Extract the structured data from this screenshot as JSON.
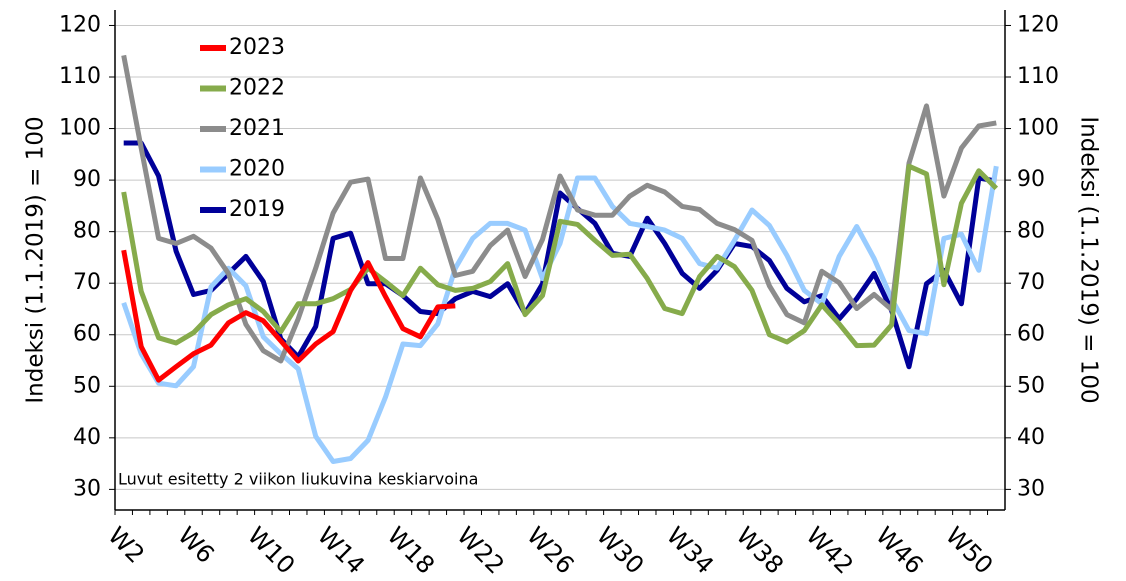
{
  "chart_data": {
    "type": "line",
    "annotation": "Luvut esitetty 2 viikon liukuvina keskiarvoina",
    "y_label": "Indeksi (1.1.2019) = 100",
    "y2_label": "Indeksi (1.1.2019) = 100",
    "categories": [
      "W2",
      null,
      null,
      null,
      "W6",
      null,
      null,
      null,
      "W10",
      null,
      null,
      null,
      "W14",
      null,
      null,
      null,
      "W18",
      null,
      null,
      null,
      "W22",
      null,
      null,
      null,
      "W26",
      null,
      null,
      null,
      "W30",
      null,
      null,
      null,
      "W34",
      null,
      null,
      null,
      "W38",
      null,
      null,
      null,
      "W42",
      null,
      null,
      null,
      "W46",
      null,
      null,
      null,
      "W50",
      null,
      null
    ],
    "ylim": [
      26,
      123
    ],
    "yticks": [
      30,
      40,
      50,
      60,
      70,
      80,
      90,
      100,
      110,
      120
    ],
    "y2lim": [
      26,
      123
    ],
    "y2ticks": [
      30,
      40,
      50,
      60,
      70,
      80,
      90,
      100,
      110,
      120
    ],
    "grid": true,
    "legend": "upper left",
    "series": [
      {
        "name": "2023",
        "color": "#ff0000",
        "values": [
          76.4,
          57.7,
          51.2,
          53.8,
          56.3,
          58,
          62.3,
          64.3,
          62.7,
          58.8,
          54.9,
          58.2,
          60.6,
          68.6,
          74,
          67.4,
          61.2,
          59.6,
          65.4,
          65.6,
          null,
          null,
          null,
          null,
          null,
          null,
          null,
          null,
          null,
          null,
          null,
          null,
          null,
          null,
          null,
          null,
          null,
          null,
          null,
          null,
          null,
          null,
          null,
          null,
          null,
          null,
          null,
          null,
          null,
          null,
          null
        ]
      },
      {
        "name": "2022",
        "color": "#86ab4b",
        "values": [
          87.7,
          68.4,
          59.4,
          58.4,
          60.4,
          63.9,
          65.8,
          67,
          64.5,
          60.6,
          66,
          66,
          67,
          68.8,
          72.9,
          70.3,
          67.6,
          72.9,
          69.7,
          68.6,
          69,
          70.3,
          73.8,
          63.9,
          67.6,
          82,
          81.4,
          78.3,
          75.4,
          75.6,
          70.9,
          65.1,
          64.1,
          71.3,
          75.2,
          73.2,
          68.6,
          60,
          58.6,
          60.8,
          65.8,
          62.1,
          57.9,
          58,
          61.9,
          92.7,
          91.2,
          69.7,
          85.5,
          91.8,
          88.4
        ]
      },
      {
        "name": "2021",
        "color": "#8c8c8c",
        "values": [
          114.2,
          96.2,
          78.7,
          77.7,
          79.1,
          76.8,
          71.9,
          62,
          56.9,
          54.9,
          63.1,
          72.9,
          83.6,
          89.6,
          90.2,
          74.8,
          74.8,
          90.4,
          82.4,
          71.5,
          72.3,
          77.3,
          80.3,
          71.3,
          78.5,
          90.8,
          84.2,
          83.2,
          83.2,
          86.9,
          89,
          87.7,
          84.9,
          84.3,
          81.6,
          80.4,
          78.3,
          69.5,
          63.9,
          62.3,
          72.3,
          70.1,
          65.1,
          67.8,
          64.9,
          93.3,
          104.4,
          86.9,
          96.2,
          100.5,
          101.1
        ]
      },
      {
        "name": "2020",
        "color": "#99ccff",
        "values": [
          66.2,
          56.3,
          50.6,
          50.1,
          53.8,
          69.3,
          72.9,
          69.5,
          59.6,
          56.3,
          53.4,
          40.3,
          35.4,
          36,
          39.5,
          47.9,
          58.2,
          57.9,
          62.1,
          72.9,
          78.7,
          81.6,
          81.6,
          80.3,
          70.9,
          77.7,
          90.4,
          90.4,
          84.9,
          81.6,
          81,
          80.3,
          78.7,
          73.8,
          72.9,
          78.3,
          84.2,
          81.2,
          75.4,
          68.6,
          66,
          75.2,
          81,
          74.8,
          67,
          60.8,
          60.2,
          78.7,
          79.5,
          72.5,
          92.7
        ]
      },
      {
        "name": "2019",
        "color": "#000099",
        "values": [
          97.2,
          97.2,
          90.8,
          76.2,
          67.8,
          68.6,
          71.9,
          75.2,
          70.3,
          59.2,
          55.7,
          61.6,
          78.7,
          79.7,
          69.9,
          69.9,
          67.6,
          64.5,
          64.1,
          67,
          68.4,
          67.4,
          69.9,
          64.1,
          69.9,
          87.5,
          84.5,
          81.6,
          75.8,
          75.2,
          82.6,
          77.7,
          71.9,
          69,
          72.5,
          77.7,
          77.1,
          74.4,
          69,
          66.4,
          67.6,
          63.1,
          67,
          71.9,
          64.7,
          53.8,
          69.9,
          72.5,
          66,
          90.4,
          89.8
        ]
      }
    ]
  }
}
